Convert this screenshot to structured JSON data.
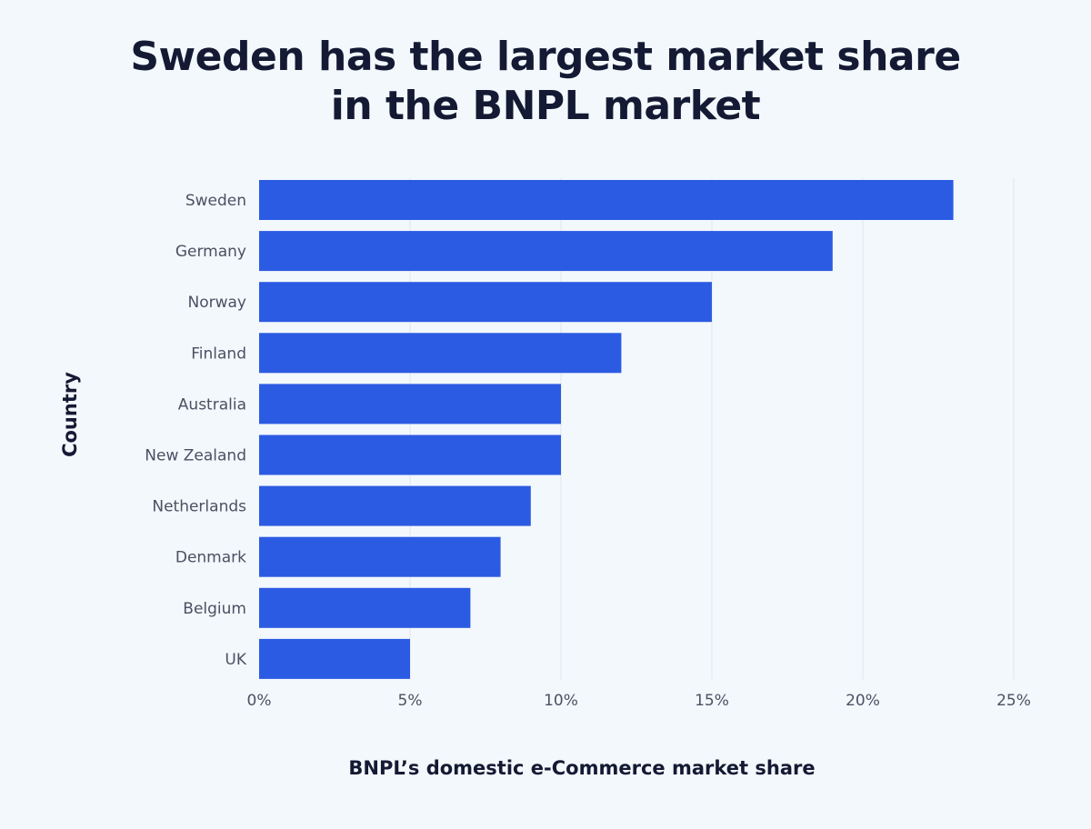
{
  "title_lines": [
    "Sweden has the largest market share",
    "in the BNPL market"
  ],
  "colors": {
    "bar": "#2c5be3",
    "grid": "#e1e6ee",
    "background": "#f3f8fc",
    "text": "#141a33",
    "tick_text": "#4a5163"
  },
  "chart_data": {
    "type": "bar",
    "orientation": "horizontal",
    "categories": [
      "Sweden",
      "Germany",
      "Norway",
      "Finland",
      "Australia",
      "New Zealand",
      "Netherlands",
      "Denmark",
      "Belgium",
      "UK"
    ],
    "values": [
      23,
      19,
      15,
      12,
      10,
      10,
      9,
      8,
      7,
      5
    ],
    "xlim": [
      0,
      25
    ],
    "xticks": [
      0,
      5,
      10,
      15,
      20,
      25
    ],
    "xtick_labels": [
      "0%",
      "5%",
      "10%",
      "15%",
      "20%",
      "25%"
    ],
    "xlabel": "BNPL’s domestic e-Commerce market share",
    "ylabel": "Country",
    "grid": "vertical"
  }
}
